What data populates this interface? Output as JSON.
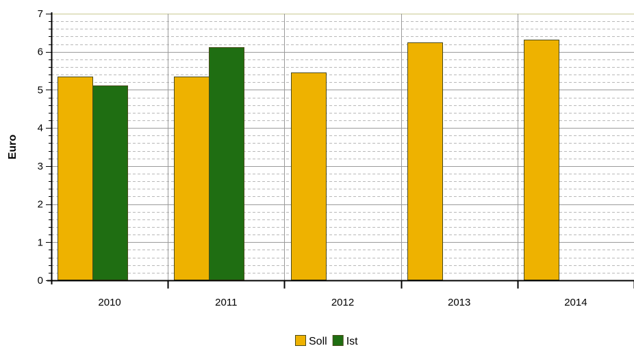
{
  "chart_data": {
    "type": "bar",
    "title": "",
    "xlabel": "",
    "ylabel": "Euro",
    "categories": [
      "2010",
      "2011",
      "2012",
      "2013",
      "2014"
    ],
    "series": [
      {
        "name": "Soll",
        "color": "#EEB200",
        "values": [
          5.35,
          5.35,
          5.45,
          6.25,
          6.32
        ]
      },
      {
        "name": "Ist",
        "color": "#1F6E12",
        "values": [
          5.12,
          6.12,
          null,
          null,
          null
        ]
      }
    ],
    "ylim": [
      0,
      7
    ],
    "y_ticks": [
      "0",
      "1",
      "2",
      "3",
      "4",
      "5",
      "6",
      "7"
    ],
    "grid": true,
    "legend_position": "bottom-center"
  }
}
